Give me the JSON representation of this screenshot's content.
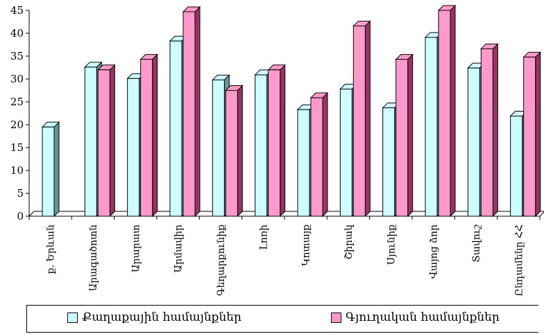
{
  "chart_data": {
    "type": "bar",
    "categories": [
      "ք. Երևան",
      "Արագածոտն",
      "Արարատ",
      "Արմավիր",
      "Գեղարքունիք",
      "Լոռի",
      "Կոտայք",
      "Շիրակ",
      "Սյունիք",
      "Վայոց ձոր",
      "Տավուշ",
      "Ընդամենը ՀՀ"
    ],
    "series": [
      {
        "name": "Քաղաքային համայնքներ",
        "values": [
          19.5,
          32.6,
          30.1,
          38.3,
          29.8,
          30.9,
          23.3,
          27.8,
          23.7,
          39.1,
          32.4,
          21.9
        ]
      },
      {
        "name": "Գյուղական համայնքներ",
        "values": [
          null,
          32.0,
          34.3,
          44.7,
          27.5,
          32.0,
          25.9,
          41.6,
          34.3,
          45.0,
          36.6,
          34.8
        ]
      }
    ],
    "yticks": [
      "0",
      "5",
      "10",
      "15",
      "20",
      "25",
      "30",
      "35",
      "40",
      "45"
    ],
    "ylim": [
      0,
      45
    ],
    "colors": {
      "urban": "#ccffff",
      "rural": "#ff99cc",
      "urbanSide": "#5f9999",
      "ruralSide": "#993366"
    },
    "grid": false,
    "legend_position": "bottom"
  }
}
